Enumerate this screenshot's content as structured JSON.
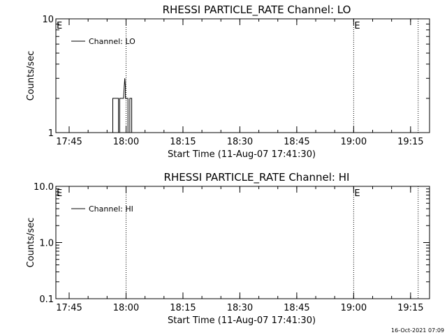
{
  "footer": {
    "timestamp": "16-Oct-2021 07:09"
  },
  "chart_data": [
    {
      "type": "line",
      "title": "RHESSI PARTICLE_RATE Channel: LO",
      "xlabel": "Start Time (11-Aug-07 17:41:30)",
      "ylabel": "Counts/sec",
      "xscale": "time",
      "xlim": [
        "17:41:30",
        "19:20:00"
      ],
      "yscale": "log",
      "ylim": [
        1,
        10
      ],
      "ytick_labels": [
        "1",
        "10"
      ],
      "xtick_labels": [
        "17:45",
        "18:00",
        "18:15",
        "18:30",
        "18:45",
        "19:00",
        "19:15"
      ],
      "legend": {
        "entry": "Channel: LO",
        "position": "top-left"
      },
      "markers": [
        {
          "label": "E",
          "time": "17:41:30"
        },
        {
          "label": "E",
          "time": "19:00:00"
        }
      ],
      "vlines": [
        "18:00:00",
        "19:00:00",
        "19:17:00"
      ],
      "series": [
        {
          "name": "Channel: LO",
          "points": [
            [
              "17:56:30",
              1
            ],
            [
              "17:56:30",
              2
            ],
            [
              "17:58:00",
              2
            ],
            [
              "17:58:00",
              1
            ],
            [
              "17:58:20",
              1
            ],
            [
              "17:58:20",
              2
            ],
            [
              "17:59:20",
              2
            ],
            [
              "17:59:30",
              2.5
            ],
            [
              "17:59:40",
              3
            ],
            [
              "17:59:50",
              2.5
            ],
            [
              "17:59:50",
              2
            ],
            [
              "18:00:30",
              2
            ],
            [
              "18:00:30",
              1
            ],
            [
              "18:01:00",
              1
            ],
            [
              "18:01:00",
              2
            ],
            [
              "18:01:30",
              2
            ],
            [
              "18:01:30",
              1
            ]
          ]
        }
      ]
    },
    {
      "type": "line",
      "title": "RHESSI PARTICLE_RATE Channel: HI",
      "xlabel": "Start Time (11-Aug-07 17:41:30)",
      "ylabel": "Counts/sec",
      "xscale": "time",
      "xlim": [
        "17:41:30",
        "19:20:00"
      ],
      "yscale": "log",
      "ylim": [
        0.1,
        10
      ],
      "ytick_labels": [
        "0.1",
        "1.0",
        "10.0"
      ],
      "xtick_labels": [
        "17:45",
        "18:00",
        "18:15",
        "18:30",
        "18:45",
        "19:00",
        "19:15"
      ],
      "legend": {
        "entry": "Channel: HI",
        "position": "top-left"
      },
      "markers": [
        {
          "label": "E",
          "time": "17:41:30"
        },
        {
          "label": "E",
          "time": "19:00:00"
        }
      ],
      "vlines": [
        "18:00:00",
        "19:00:00",
        "19:17:00"
      ],
      "series": [
        {
          "name": "Channel: HI",
          "points": []
        }
      ]
    }
  ]
}
